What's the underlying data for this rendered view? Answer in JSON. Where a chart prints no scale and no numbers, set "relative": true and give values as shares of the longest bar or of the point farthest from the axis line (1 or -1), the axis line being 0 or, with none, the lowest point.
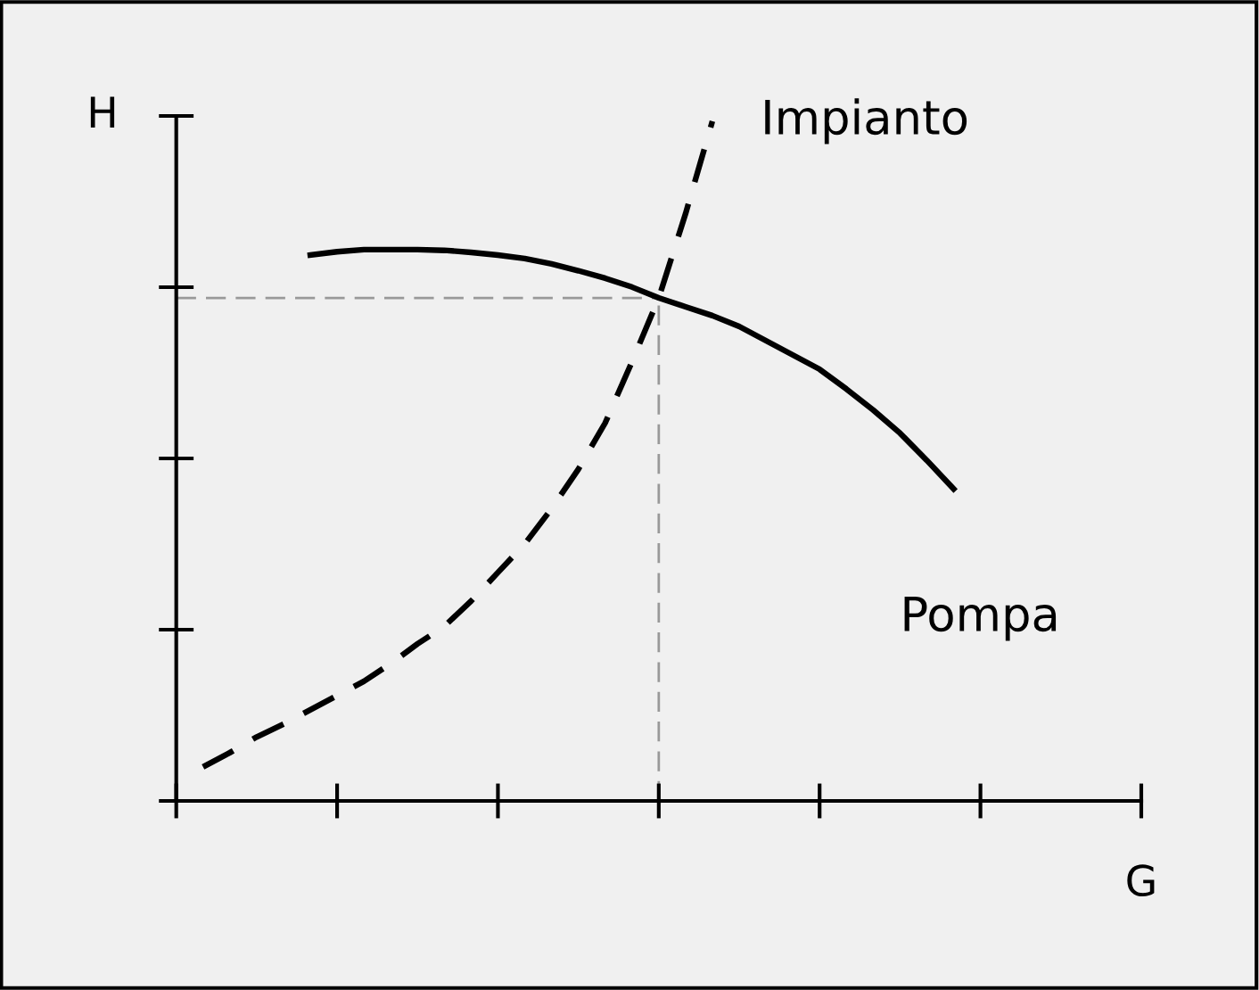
{
  "chart_data": {
    "type": "line",
    "relative": true,
    "xlabel": "G",
    "ylabel": "H",
    "categories": [
      null,
      null,
      null,
      null,
      null,
      null,
      null,
      null,
      null,
      null,
      null,
      null,
      null,
      null,
      null,
      null,
      null,
      null,
      null,
      null,
      null,
      null,
      null,
      null,
      null,
      null,
      null,
      null,
      null,
      null,
      null,
      null,
      null,
      null,
      null,
      null,
      null
    ],
    "series": [
      {
        "name": "Impianto",
        "color": "#000000",
        "line_style": "dashed",
        "values": [
          null,
          0.05,
          0.071,
          0.094,
          0.113,
          0.134,
          0.155,
          0.176,
          0.202,
          0.231,
          0.257,
          0.294,
          0.336,
          0.378,
          0.43,
          0.488,
          0.556,
          0.646,
          0.74,
          0.864,
          1.0,
          null,
          null,
          null,
          null,
          null,
          null,
          null,
          null,
          null,
          null,
          null,
          null,
          null,
          null,
          null,
          null
        ]
      },
      {
        "name": "Pompa",
        "color": "#000000",
        "line_style": "solid",
        "values": [
          null,
          null,
          null,
          null,
          null,
          0.803,
          0.808,
          0.811,
          0.811,
          0.811,
          0.81,
          0.807,
          0.803,
          0.798,
          0.79,
          0.78,
          0.769,
          0.756,
          0.74,
          0.727,
          0.714,
          0.698,
          0.677,
          0.656,
          0.635,
          0.606,
          0.575,
          0.541,
          0.501,
          0.459,
          null,
          null,
          null,
          null,
          null,
          null,
          null
        ]
      }
    ],
    "ref_lines": [
      {
        "axis": "y",
        "value": 0.74,
        "color": "#999999",
        "line_style": "dashed"
      }
    ],
    "grid": false,
    "legend": false
  }
}
